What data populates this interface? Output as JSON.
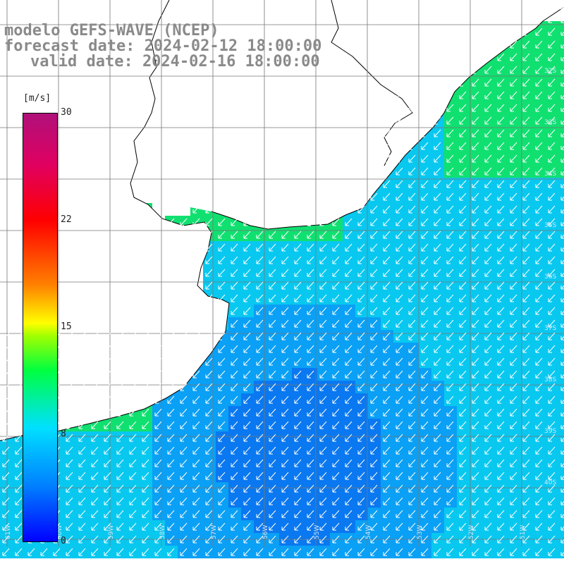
{
  "title": {
    "line1": "modelo GEFS-WAVE (NCEP)",
    "line2": "forecast date: 2024-02-12 18:00:00",
    "line3": "valid date: 2024-02-16 18:00:00"
  },
  "colorbar": {
    "unit": "[m/s]",
    "ticks": [
      "30",
      "22",
      "15",
      "8",
      "0"
    ],
    "min": 0,
    "max": 30,
    "colors": [
      "#0000ff",
      "#0080ff",
      "#00e0ff",
      "#00ff40",
      "#ffff00",
      "#ff8000",
      "#ff0000",
      "#b0107a"
    ]
  },
  "lat_labels": [
    "32S",
    "33S",
    "34S",
    "35S",
    "36S",
    "37S",
    "38S",
    "39S",
    "40S"
  ],
  "lon_labels": [
    "61W",
    "60W",
    "59W",
    "58W",
    "57W",
    "56W",
    "55W",
    "54W",
    "53W",
    "52W",
    "51W"
  ],
  "map": {
    "land_color": "#ffffff",
    "coast_color": "#000000",
    "grid_color": "#888888",
    "arrow_color": "#ffffff",
    "typical_speed": "8-12 m/s",
    "arrow_direction": "toward southwest"
  }
}
